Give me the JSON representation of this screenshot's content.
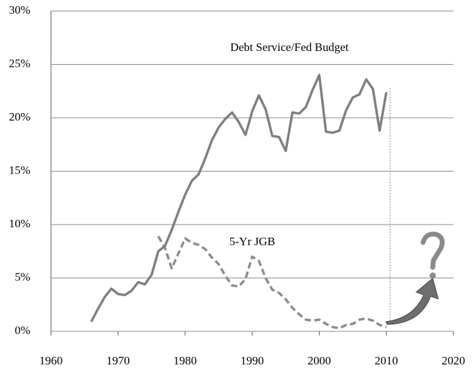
{
  "chart_data": {
    "type": "line",
    "x": [
      1966,
      1967,
      1968,
      1969,
      1970,
      1971,
      1972,
      1973,
      1974,
      1975,
      1976,
      1977,
      1978,
      1979,
      1980,
      1981,
      1982,
      1983,
      1984,
      1985,
      1986,
      1987,
      1988,
      1989,
      1990,
      1991,
      1992,
      1993,
      1994,
      1995,
      1996,
      1997,
      1998,
      1999,
      2000,
      2001,
      2002,
      2003,
      2004,
      2005,
      2006,
      2007,
      2008,
      2009,
      2010
    ],
    "series": [
      {
        "name": "Debt Service/Fed Budget",
        "color": "#7f7f7f",
        "dash": false,
        "values": [
          0.9,
          2.1,
          3.2,
          4.0,
          3.5,
          3.4,
          3.8,
          4.6,
          4.4,
          5.3,
          7.5,
          8.0,
          9.5,
          11.2,
          12.8,
          14.1,
          14.7,
          16.2,
          17.9,
          19.1,
          19.9,
          20.5,
          19.6,
          18.4,
          20.6,
          22.1,
          20.8,
          18.3,
          18.2,
          16.9,
          20.5,
          20.4,
          21.0,
          22.6,
          24.0,
          18.7,
          18.6,
          18.8,
          20.7,
          21.9,
          22.2,
          23.6,
          22.7,
          18.8,
          22.4
        ]
      },
      {
        "name": "5-Yr JGB",
        "color": "#8c8c8c",
        "dash": true,
        "values": [
          null,
          null,
          null,
          null,
          null,
          null,
          null,
          null,
          null,
          null,
          8.9,
          7.8,
          5.9,
          7.3,
          8.7,
          8.3,
          8.1,
          7.7,
          6.9,
          6.3,
          5.2,
          4.3,
          4.2,
          4.9,
          7.0,
          6.6,
          5.0,
          3.9,
          3.6,
          3.0,
          2.2,
          1.6,
          1.1,
          1.0,
          1.1,
          0.7,
          0.4,
          0.3,
          0.6,
          0.7,
          1.1,
          1.2,
          1.0,
          0.6,
          0.4
        ]
      }
    ],
    "xlim": [
      1960,
      2020
    ],
    "xticks": [
      1960,
      1970,
      1980,
      1990,
      2000,
      2010,
      2020
    ],
    "ylim": [
      0,
      30
    ],
    "yticks": [
      {
        "value": 0,
        "label": "0%"
      },
      {
        "value": 5,
        "label": "5%"
      },
      {
        "value": 10,
        "label": "10%"
      },
      {
        "value": 15,
        "label": "15%"
      },
      {
        "value": 20,
        "label": "20%"
      },
      {
        "value": 25,
        "label": "25%"
      },
      {
        "value": 30,
        "label": "30%"
      }
    ],
    "grid": true
  }
}
